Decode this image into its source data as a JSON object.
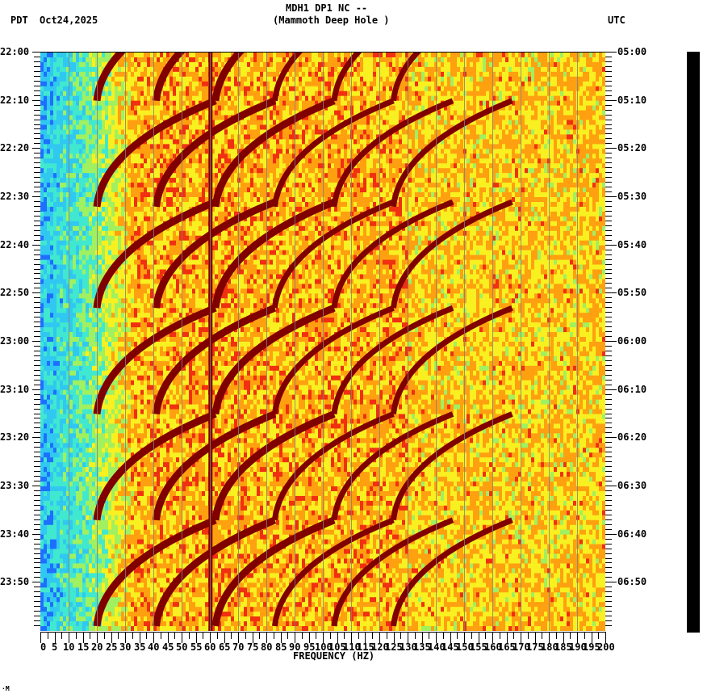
{
  "header": {
    "station_title": "MDH1 DP1 NC --",
    "station_subtitle": "(Mammoth Deep Hole )",
    "left_timezone": "PDT",
    "date": "Oct24,2025",
    "right_timezone": "UTC"
  },
  "footer_mark": "·M",
  "chart_data": {
    "type": "heatmap",
    "title": "MDH1 DP1 NC -- (Mammoth Deep Hole )",
    "subtitle": "Oct24,2025",
    "xlabel": "FREQUENCY (HZ)",
    "ylabel_left": "PDT",
    "ylabel_right": "UTC",
    "xlim": [
      0,
      200
    ],
    "x_ticks": [
      0,
      5,
      10,
      15,
      20,
      25,
      30,
      35,
      40,
      45,
      50,
      55,
      60,
      65,
      70,
      75,
      80,
      85,
      90,
      95,
      100,
      105,
      110,
      115,
      120,
      125,
      130,
      135,
      140,
      145,
      150,
      155,
      160,
      165,
      170,
      175,
      180,
      185,
      190,
      195,
      200
    ],
    "y_ticks_left": [
      "22:00",
      "22:10",
      "22:20",
      "22:30",
      "22:40",
      "22:50",
      "23:00",
      "23:10",
      "23:20",
      "23:30",
      "23:40",
      "23:50"
    ],
    "y_ticks_right": [
      "05:00",
      "05:10",
      "05:20",
      "05:30",
      "05:40",
      "05:50",
      "06:00",
      "06:10",
      "06:20",
      "06:30",
      "06:40",
      "06:50"
    ],
    "time_range_pdt": [
      "22:00",
      "24:00"
    ],
    "colormap": [
      "#1e6fff",
      "#30c8f0",
      "#40e8d0",
      "#a0f060",
      "#f8f020",
      "#ffa010",
      "#f03010",
      "#800000"
    ],
    "features": {
      "dominant_line_hz": 60,
      "low_freq_band_hz": [
        0,
        25
      ],
      "chirp_sweeps_start_times_pdt": [
        "22:10",
        "22:32",
        "22:53",
        "23:15",
        "23:37",
        "23:59"
      ],
      "chirp_freq_range_hz": [
        20,
        130
      ]
    },
    "grid": true
  }
}
